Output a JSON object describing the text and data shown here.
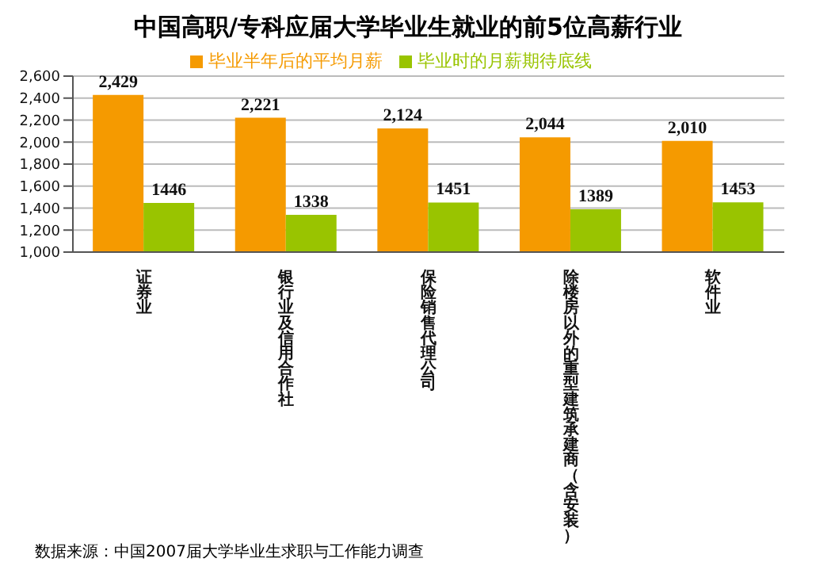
{
  "chart_data": {
    "type": "bar",
    "title": "中国高职/专科应届大学毕业生就业的前5位高薪行业",
    "categories": [
      "证券业",
      "银行业及信用合作社",
      "保险销售代理公司",
      "除楼房以外的重型建筑承建商（含安装）",
      "软件业"
    ],
    "series": [
      {
        "name": "毕业半年后的平均月薪",
        "color": "#f59a00",
        "values": [
          2429,
          2221,
          2124,
          2044,
          2010
        ],
        "value_labels": [
          "2,429",
          "2,221",
          "2,124",
          "2,044",
          "2,010"
        ]
      },
      {
        "name": "毕业时的月薪期待底线",
        "color": "#99c400",
        "values": [
          1446,
          1338,
          1451,
          1389,
          1453
        ],
        "value_labels": [
          "1446",
          "1338",
          "1451",
          "1389",
          "1453"
        ]
      }
    ],
    "ylim": [
      1000,
      2600
    ],
    "yticks": [
      {
        "value": 1000,
        "label": "1,000"
      },
      {
        "value": 1200,
        "label": "1,200"
      },
      {
        "value": 1400,
        "label": "1,400"
      },
      {
        "value": 1600,
        "label": "1,600"
      },
      {
        "value": 1800,
        "label": "1,800"
      },
      {
        "value": 2000,
        "label": "2,000"
      },
      {
        "value": 2200,
        "label": "2,200"
      },
      {
        "value": 2400,
        "label": "2,400"
      },
      {
        "value": 2600,
        "label": "2,600"
      }
    ],
    "grid": "y",
    "legend": "top",
    "annotations": [
      "数据来源：中国2007届大学毕业生求职与工作能力调查"
    ]
  }
}
